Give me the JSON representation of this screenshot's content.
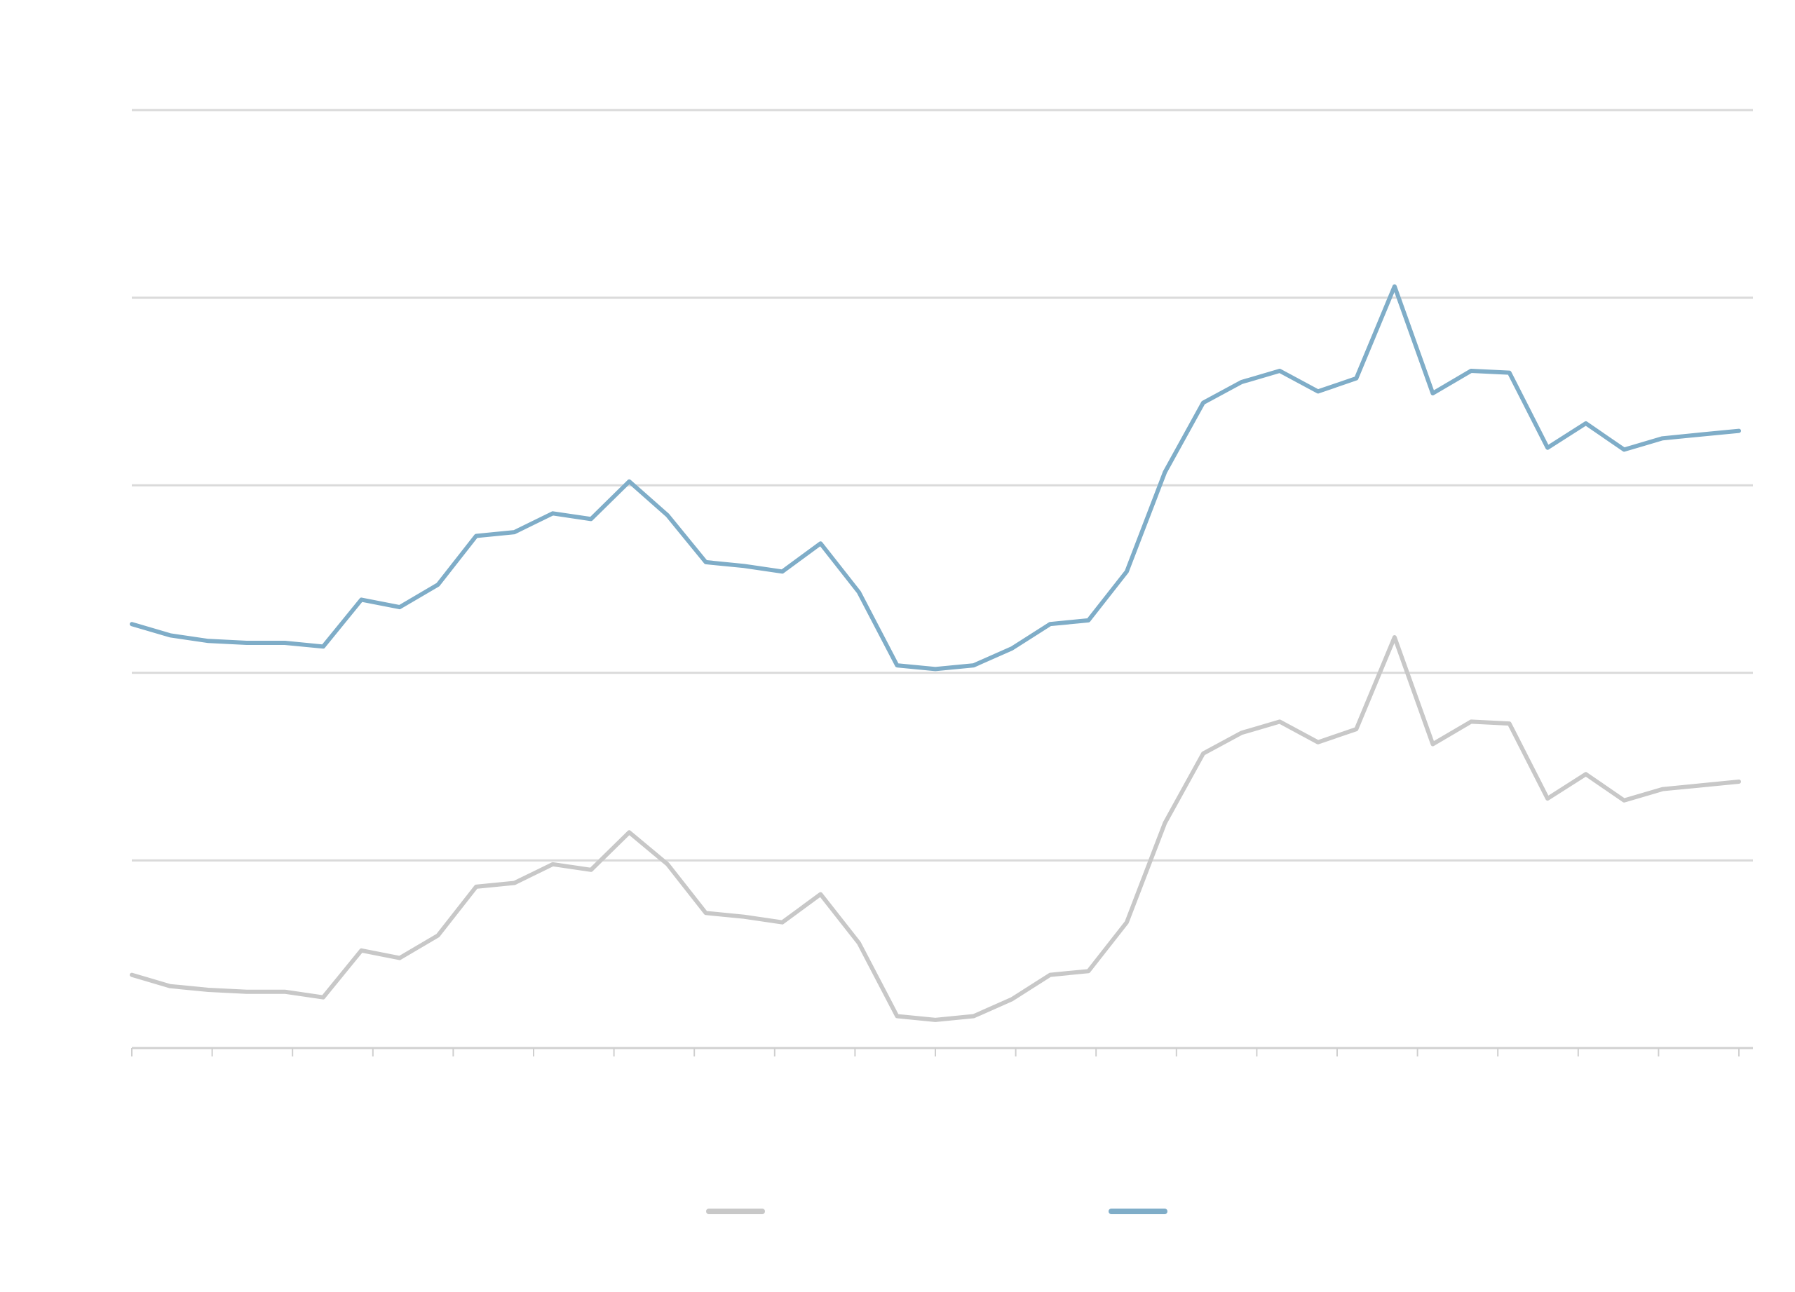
{
  "chart_data": {
    "type": "line",
    "grid": true,
    "legend_position": "bottom",
    "ylim": [
      0,
      5
    ],
    "y_gridlines": [
      0,
      1,
      2,
      3,
      4,
      5
    ],
    "x_ticks": 21,
    "x": [
      0,
      0.5,
      1,
      1.5,
      2,
      2.5,
      3,
      3.5,
      4,
      4.5,
      5,
      5.5,
      6,
      6.5,
      7,
      7.5,
      8,
      8.5,
      9,
      9.5,
      10,
      10.5,
      11,
      11.5,
      12,
      12.5,
      13,
      13.5,
      14,
      14.5,
      15,
      15.5,
      16,
      16.5,
      17,
      17.5,
      18,
      18.5,
      19,
      19.5,
      20,
      20.5,
      21
    ],
    "xlim": [
      0,
      21
    ],
    "series": [
      {
        "color": "#c8c8c8",
        "values": [
          0.39,
          0.33,
          0.31,
          0.3,
          0.3,
          0.27,
          0.52,
          0.48,
          0.6,
          0.86,
          0.88,
          0.98,
          0.95,
          1.15,
          0.98,
          0.72,
          0.7,
          0.67,
          0.82,
          0.56,
          0.17,
          0.15,
          0.17,
          0.26,
          0.39,
          0.41,
          0.67,
          1.2,
          1.57,
          1.68,
          1.74,
          1.63,
          1.7,
          2.19,
          1.62,
          1.74,
          1.73,
          1.33,
          1.46,
          1.32,
          1.38,
          1.4,
          1.42
        ]
      },
      {
        "color": "#7fadc8",
        "values": [
          2.26,
          2.2,
          2.17,
          2.16,
          2.16,
          2.14,
          2.39,
          2.35,
          2.47,
          2.73,
          2.75,
          2.85,
          2.82,
          3.02,
          2.84,
          2.59,
          2.57,
          2.54,
          2.69,
          2.43,
          2.04,
          2.02,
          2.04,
          2.13,
          2.26,
          2.28,
          2.54,
          3.07,
          3.44,
          3.55,
          3.61,
          3.5,
          3.57,
          4.06,
          3.49,
          3.61,
          3.6,
          3.2,
          3.33,
          3.19,
          3.25,
          3.27,
          3.29
        ]
      }
    ]
  }
}
